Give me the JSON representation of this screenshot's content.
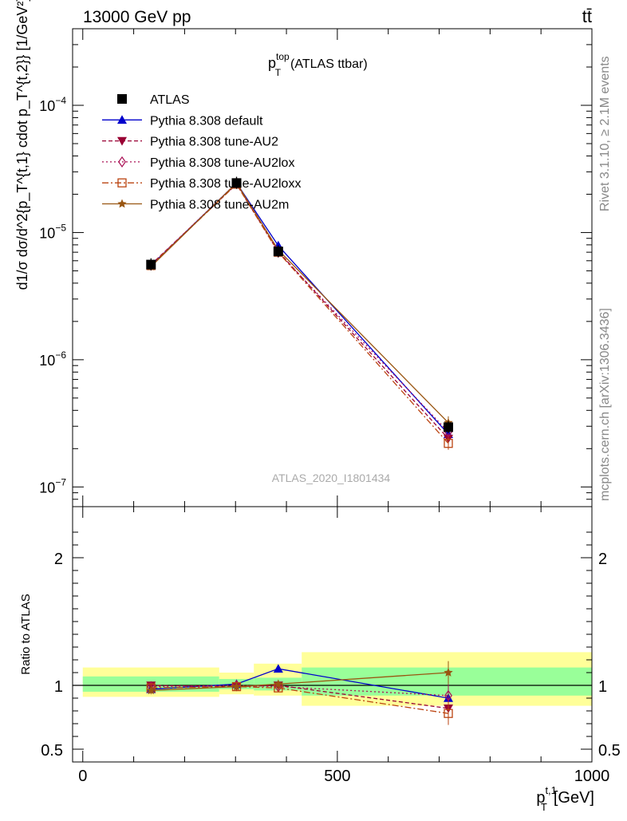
{
  "header": {
    "energy_label": "13000 GeV pp",
    "process_label": "tt̄"
  },
  "side_labels": {
    "rivet": "Rivet 3.1.10, ≥ 2.1M events",
    "mcplots": "mcplots.cern.ch [arXiv:1306.3436]"
  },
  "chart_data": [
    {
      "type": "line",
      "title": "p_T^top (ATLAS ttbar)",
      "title_main": "p",
      "title_sup": "top",
      "title_sub": "T",
      "title_rest": "(ATLAS ttbar)",
      "watermark": "ATLAS_2020_I1801434",
      "ylabel": "d1/σ dσ/d^2{p_T^{t,1} cdot p_T^{t,2}} [1/GeV²]",
      "yscale": "log",
      "ylim": [
        7e-08,
        0.0004
      ],
      "xlim": [
        -20,
        1000
      ],
      "y_ticks": [
        {
          "value": 1e-07,
          "mantissa": "10",
          "exp": "−7"
        },
        {
          "value": 1e-06,
          "mantissa": "10",
          "exp": "−6"
        },
        {
          "value": 1e-05,
          "mantissa": "10",
          "exp": "−5"
        },
        {
          "value": 0.0001,
          "mantissa": "10",
          "exp": "−4"
        }
      ],
      "x": [
        134,
        302,
        384,
        718
      ],
      "legend_position": "top-left",
      "series": [
        {
          "name": "ATLAS",
          "color": "#000000",
          "marker": "square-filled",
          "dash": "none",
          "values": [
            5.6e-06,
            2.45e-05,
            7.1e-06,
            2.95e-07
          ]
        },
        {
          "name": "Pythia 8.308 default",
          "color": "#0000cc",
          "marker": "triangle-up-filled",
          "dash": "none",
          "values": [
            5.5e-06,
            2.45e-05,
            7.9e-06,
            2.6e-07
          ]
        },
        {
          "name": "Pythia 8.308 tune-AU2",
          "color": "#990033",
          "marker": "triangle-down-filled",
          "dash": "5,3",
          "values": [
            5.6e-06,
            2.4e-05,
            7.1e-06,
            2.4e-07
          ]
        },
        {
          "name": "Pythia 8.308 tune-AU2lox",
          "color": "#aa1155",
          "marker": "diamond-open",
          "dash": "2,3",
          "values": [
            5.55e-06,
            2.45e-05,
            7e-06,
            2.7e-07
          ]
        },
        {
          "name": "Pythia 8.308 tune-AU2loxx",
          "color": "#bb4411",
          "marker": "square-open",
          "dash": "8,3,2,3",
          "values": [
            5.5e-06,
            2.4e-05,
            7e-06,
            2.2e-07
          ]
        },
        {
          "name": "Pythia 8.308 tune-AU2m",
          "color": "#995511",
          "marker": "star",
          "dash": "none",
          "values": [
            5.4e-06,
            2.45e-05,
            7.3e-06,
            3.2e-07
          ]
        }
      ]
    },
    {
      "type": "line",
      "ylabel": "Ratio to ATLAS",
      "xlabel": "p_T^{t,1} [GeV]",
      "xlabel_main": "p",
      "xlabel_sup": "t,1",
      "xlabel_sub": "T",
      "xlabel_rest": "[GeV]",
      "ylim": [
        0.4,
        2.4
      ],
      "xlim": [
        -20,
        1000
      ],
      "y_ticks": [
        0.5,
        1,
        2
      ],
      "y_tick_labels": [
        "0.5",
        "1",
        "2"
      ],
      "x_ticks": [
        0,
        500,
        1000
      ],
      "x_tick_labels": [
        "0",
        "500",
        "1000"
      ],
      "x": [
        134,
        302,
        384,
        718
      ],
      "bands": [
        {
          "x_range": [
            0,
            268
          ],
          "inner": [
            0.95,
            1.07
          ],
          "outer": [
            0.91,
            1.14
          ]
        },
        {
          "x_range": [
            268,
            336
          ],
          "inner": [
            0.97,
            1.05
          ],
          "outer": [
            0.93,
            1.1
          ]
        },
        {
          "x_range": [
            336,
            430
          ],
          "inner": [
            0.96,
            1.06
          ],
          "outer": [
            0.92,
            1.17
          ]
        },
        {
          "x_range": [
            430,
            1000
          ],
          "inner": [
            0.92,
            1.14
          ],
          "outer": [
            0.84,
            1.26
          ]
        }
      ],
      "band_colors": {
        "inner": "#99ff99",
        "outer": "#ffff99"
      },
      "series": [
        {
          "name": "Pythia 8.308 default",
          "values": [
            0.97,
            1.01,
            1.13,
            0.9
          ]
        },
        {
          "name": "Pythia 8.308 tune-AU2",
          "values": [
            1.0,
            0.99,
            1.0,
            0.82
          ]
        },
        {
          "name": "Pythia 8.308 tune-AU2lox",
          "values": [
            0.99,
            1.0,
            0.99,
            0.92
          ]
        },
        {
          "name": "Pythia 8.308 tune-AU2loxx",
          "values": [
            0.98,
            0.99,
            0.98,
            0.78
          ]
        },
        {
          "name": "Pythia 8.308 tune-AU2m",
          "values": [
            0.96,
            0.99,
            1.01,
            1.1
          ]
        }
      ]
    }
  ]
}
